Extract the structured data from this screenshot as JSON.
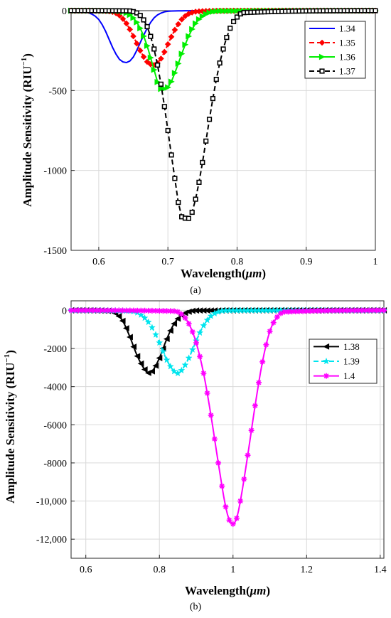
{
  "chart_data": [
    {
      "type": "line",
      "panel_label": "(a)",
      "xlabel": "Wavelength(",
      "xlabel_unit": "μm",
      "xlabel_close": ")",
      "ylabel": "Amplitude Sensitivity (RIU",
      "ylabel_exp": "−1",
      "ylabel_close": ")",
      "xlim": [
        0.56,
        1.0
      ],
      "ylim": [
        -1500,
        0
      ],
      "xticks": [
        0.6,
        0.7,
        0.8,
        0.9,
        1.0
      ],
      "xtick_labels": [
        "0.6",
        "0.7",
        "0.8",
        "0.9",
        "1"
      ],
      "yticks": [
        0,
        -500,
        -1000,
        -1500
      ],
      "ytick_labels": [
        "0",
        "-500",
        "-1000",
        "-1500"
      ],
      "grid": true,
      "legend_position": "top-right",
      "series": [
        {
          "name": "1.34",
          "color": "#0000ff",
          "dash": "solid",
          "marker": "none",
          "x": [
            0.56,
            0.58,
            0.6,
            0.61,
            0.62,
            0.63,
            0.64,
            0.65,
            0.66,
            0.67,
            0.68,
            0.69,
            0.7,
            0.72,
            0.75,
            0.8,
            1.0
          ],
          "y": [
            -2,
            -8,
            -55,
            -130,
            -230,
            -305,
            -325,
            -290,
            -200,
            -110,
            -45,
            -15,
            -4,
            -1,
            0,
            0,
            0
          ]
        },
        {
          "name": "1.35",
          "color": "#ff0000",
          "dash": "dash",
          "marker": "diamond",
          "x": [
            0.56,
            0.6,
            0.62,
            0.63,
            0.64,
            0.65,
            0.66,
            0.67,
            0.68,
            0.69,
            0.7,
            0.71,
            0.72,
            0.73,
            0.75,
            0.8,
            1.0
          ],
          "y": [
            0,
            -1,
            -8,
            -30,
            -80,
            -160,
            -250,
            -320,
            -340,
            -300,
            -210,
            -120,
            -55,
            -20,
            -3,
            0,
            0
          ]
        },
        {
          "name": "1.36",
          "color": "#00ee00",
          "dash": "solid",
          "marker": "triangle-right",
          "x": [
            0.56,
            0.62,
            0.64,
            0.65,
            0.66,
            0.67,
            0.68,
            0.69,
            0.7,
            0.71,
            0.72,
            0.73,
            0.74,
            0.75,
            0.76,
            0.78,
            1.0
          ],
          "y": [
            0,
            -2,
            -15,
            -45,
            -110,
            -220,
            -370,
            -490,
            -480,
            -390,
            -270,
            -160,
            -80,
            -35,
            -12,
            -2,
            0
          ]
        },
        {
          "name": "1.37",
          "color": "#000000",
          "dash": "dash",
          "marker": "square",
          "x": [
            0.56,
            0.64,
            0.65,
            0.66,
            0.67,
            0.68,
            0.69,
            0.7,
            0.71,
            0.72,
            0.73,
            0.74,
            0.75,
            0.76,
            0.77,
            0.78,
            0.79,
            0.8,
            0.81,
            1.0
          ],
          "y": [
            0,
            -1,
            -6,
            -30,
            -100,
            -240,
            -460,
            -750,
            -1050,
            -1290,
            -1300,
            -1180,
            -950,
            -680,
            -430,
            -240,
            -110,
            -40,
            -12,
            0
          ]
        }
      ]
    },
    {
      "type": "line",
      "panel_label": "(b)",
      "xlabel": "Wavelength(",
      "xlabel_unit": "μm",
      "xlabel_close": ")",
      "ylabel": "Amplitude Sensitivity (RIU",
      "ylabel_exp": "−1",
      "ylabel_close": ")",
      "xlim": [
        0.56,
        1.41
      ],
      "ylim": [
        -13000,
        500
      ],
      "xticks": [
        0.6,
        0.8,
        1.0,
        1.2,
        1.4
      ],
      "xtick_labels": [
        "0.6",
        "0.8",
        "1",
        "1.2",
        "1.4"
      ],
      "yticks": [
        0,
        -2000,
        -4000,
        -6000,
        -8000,
        -10000,
        -12000
      ],
      "ytick_labels": [
        "0",
        "-2000",
        "-4000",
        "-6000",
        "-8000",
        "-10,000",
        "-12,000"
      ],
      "grid": true,
      "legend_position": "top-right",
      "series": [
        {
          "name": "1.38",
          "color": "#000000",
          "dash": "solid",
          "marker": "triangle-left",
          "x": [
            0.56,
            0.66,
            0.68,
            0.7,
            0.72,
            0.74,
            0.76,
            0.77,
            0.78,
            0.8,
            0.82,
            0.84,
            0.86,
            0.88,
            0.9,
            1.41
          ],
          "y": [
            0,
            -30,
            -150,
            -550,
            -1400,
            -2400,
            -3100,
            -3280,
            -3200,
            -2500,
            -1500,
            -700,
            -250,
            -70,
            -10,
            0
          ]
        },
        {
          "name": "1.39",
          "color": "#00e5ee",
          "dash": "dash",
          "marker": "star",
          "x": [
            0.56,
            0.72,
            0.74,
            0.76,
            0.78,
            0.8,
            0.82,
            0.84,
            0.85,
            0.86,
            0.88,
            0.9,
            0.92,
            0.94,
            0.96,
            0.98,
            1.41
          ],
          "y": [
            0,
            -30,
            -120,
            -400,
            -900,
            -1700,
            -2600,
            -3200,
            -3300,
            -3150,
            -2500,
            -1600,
            -800,
            -300,
            -80,
            -10,
            0
          ]
        },
        {
          "name": "1.4",
          "color": "#ff00ff",
          "dash": "solid",
          "marker": "asterisk",
          "x": [
            0.56,
            0.84,
            0.86,
            0.88,
            0.9,
            0.92,
            0.94,
            0.96,
            0.98,
            0.99,
            1.0,
            1.01,
            1.02,
            1.04,
            1.06,
            1.08,
            1.1,
            1.12,
            1.14,
            1.41
          ],
          "y": [
            0,
            -40,
            -200,
            -700,
            -1700,
            -3300,
            -5500,
            -8000,
            -10300,
            -11000,
            -11200,
            -10900,
            -10000,
            -7600,
            -5000,
            -2700,
            -1100,
            -350,
            -80,
            0
          ]
        }
      ]
    }
  ]
}
